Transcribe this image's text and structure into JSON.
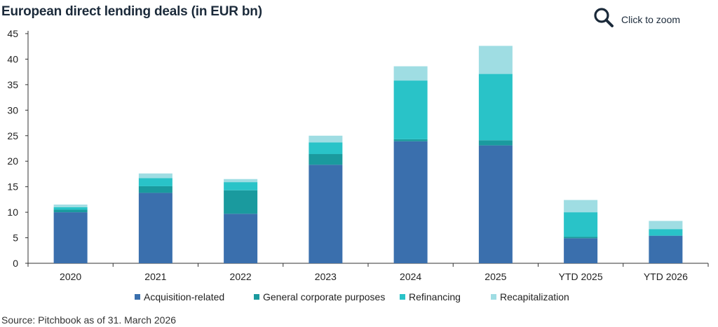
{
  "header": {
    "title": "European direct lending deals (in EUR bn)",
    "zoom_label": "Click to zoom",
    "zoom_icon": "magnifier-icon"
  },
  "footer": {
    "source": "Source: Pitchbook as of 31. March 2026"
  },
  "colors": {
    "acquisition": "#3a6fad",
    "general": "#1a9a9e",
    "refinancing": "#29c3c8",
    "recap": "#9fdde3",
    "axis": "#333333",
    "icon": "#1b2a3a"
  },
  "chart_data": {
    "type": "bar",
    "stacked": true,
    "title": "European direct lending deals (in EUR bn)",
    "xlabel": "",
    "ylabel": "",
    "ylim": [
      0,
      45
    ],
    "yticks": [
      0,
      5,
      10,
      15,
      20,
      25,
      30,
      35,
      40,
      45
    ],
    "grid": false,
    "legend_position": "bottom",
    "categories": [
      "2020",
      "2021",
      "2022",
      "2023",
      "2024",
      "2025",
      "YTD 2025",
      "YTD 2026"
    ],
    "series": [
      {
        "name": "Acquisition-related",
        "color": "#3a6fad",
        "values": [
          10.0,
          13.8,
          9.7,
          19.3,
          23.9,
          23.1,
          4.9,
          5.4
        ]
      },
      {
        "name": "General corporate purposes",
        "color": "#1a9a9e",
        "values": [
          0.5,
          1.3,
          4.6,
          2.1,
          0.4,
          1.0,
          0.3,
          0.0
        ]
      },
      {
        "name": "Refinancing",
        "color": "#29c3c8",
        "values": [
          0.5,
          1.6,
          1.6,
          2.3,
          11.5,
          13.0,
          4.8,
          1.3
        ]
      },
      {
        "name": "Recapitalization",
        "color": "#9fdde3",
        "values": [
          0.5,
          0.9,
          0.6,
          1.3,
          2.8,
          5.5,
          2.4,
          1.6
        ]
      }
    ]
  }
}
